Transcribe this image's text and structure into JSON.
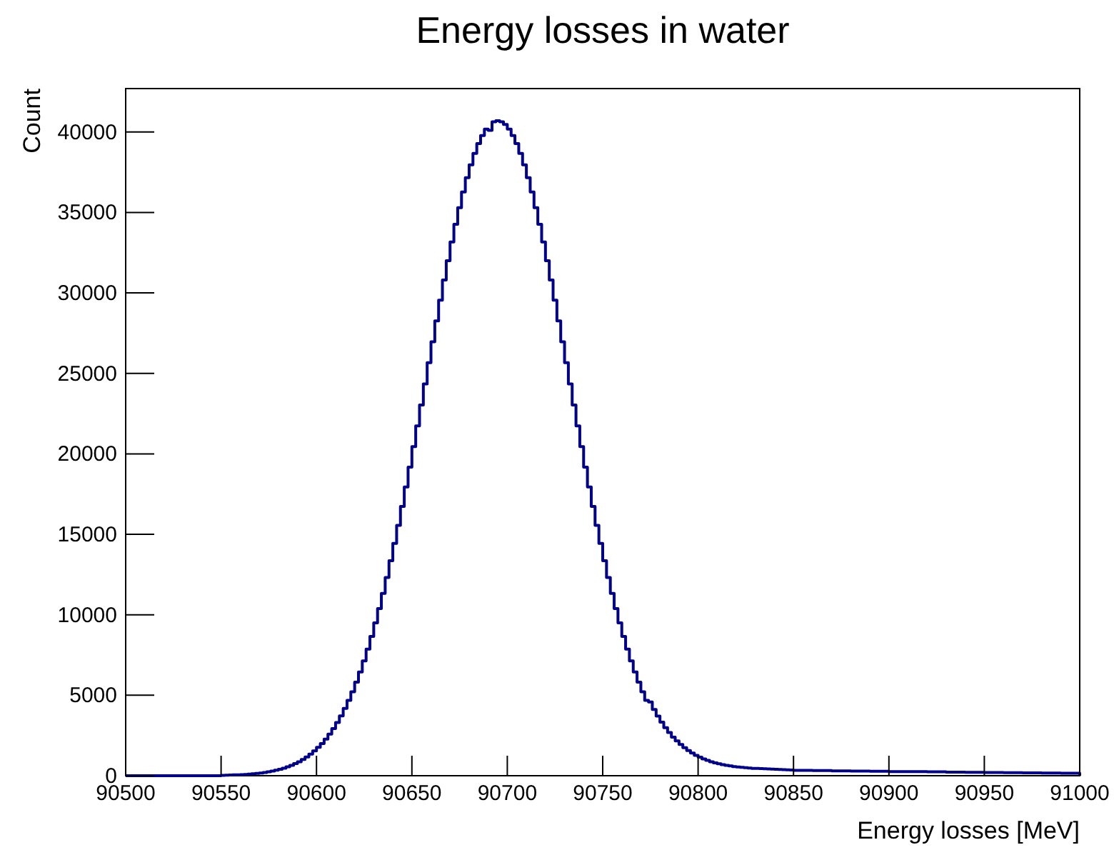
{
  "chart_data": {
    "type": "histogram",
    "title": "Energy losses in water",
    "xlabel": "Energy losses [MeV]",
    "ylabel": "Count",
    "color": "#00008b",
    "bins": [
      90500,
      90510,
      90520,
      90530,
      90540,
      90550,
      90552,
      90554,
      90556,
      90558,
      90560,
      90562,
      90564,
      90566,
      90568,
      90570,
      90572,
      90574,
      90576,
      90578,
      90580,
      90582,
      90584,
      90586,
      90588,
      90590,
      90592,
      90594,
      90596,
      90598,
      90600,
      90602,
      90604,
      90606,
      90608,
      90610,
      90612,
      90614,
      90616,
      90618,
      90620,
      90622,
      90624,
      90626,
      90628,
      90630,
      90632,
      90634,
      90636,
      90638,
      90640,
      90642,
      90644,
      90646,
      90648,
      90650,
      90652,
      90654,
      90656,
      90658,
      90660,
      90662,
      90664,
      90666,
      90668,
      90670,
      90672,
      90674,
      90676,
      90678,
      90680,
      90682,
      90684,
      90686,
      90688,
      90690,
      90692,
      90694,
      90696,
      90698,
      90700,
      90702,
      90704,
      90706,
      90708,
      90710,
      90712,
      90714,
      90716,
      90718,
      90720,
      90722,
      90724,
      90726,
      90728,
      90730,
      90732,
      90734,
      90736,
      90738,
      90740,
      90742,
      90744,
      90746,
      90748,
      90750,
      90752,
      90754,
      90756,
      90758,
      90760,
      90762,
      90764,
      90766,
      90768,
      90770,
      90772,
      90774,
      90776,
      90778,
      90780,
      90782,
      90784,
      90786,
      90788,
      90790,
      90792,
      90794,
      90796,
      90798,
      90800,
      90802,
      90804,
      90806,
      90808,
      90810,
      90812,
      90814,
      90816,
      90818,
      90820,
      90822,
      90824,
      90826,
      90828,
      90830,
      90832,
      90834,
      90836,
      90838,
      90840,
      90842,
      90844,
      90846,
      90848,
      90850,
      90860,
      90870,
      90880,
      90890,
      90900,
      90910,
      90920,
      90930,
      90940,
      90950,
      90960,
      90970,
      90980,
      90990,
      91000
    ],
    "values": [
      0,
      0,
      0,
      0,
      0,
      25,
      30,
      40,
      50,
      60,
      70,
      80,
      100,
      120,
      145,
      170,
      205,
      240,
      290,
      340,
      400,
      470,
      550,
      640,
      750,
      870,
      1010,
      1160,
      1340,
      1540,
      1760,
      2000,
      2280,
      2590,
      2930,
      3310,
      3720,
      4180,
      4680,
      5220,
      5810,
      6450,
      7140,
      7870,
      8660,
      9500,
      10390,
      11330,
      12320,
      13360,
      14440,
      15560,
      16730,
      17940,
      19180,
      20450,
      21740,
      23040,
      24350,
      25670,
      26970,
      28260,
      29550,
      30800,
      32000,
      33170,
      34270,
      35300,
      36270,
      37160,
      37960,
      38670,
      39280,
      39780,
      40180,
      40100,
      40640,
      40700,
      40640,
      40470,
      40180,
      39780,
      39280,
      38670,
      37960,
      37160,
      36270,
      35300,
      34270,
      33170,
      32000,
      30800,
      29550,
      28260,
      26970,
      25670,
      24350,
      23040,
      21740,
      20450,
      19180,
      17940,
      16730,
      15560,
      14440,
      13360,
      12320,
      11330,
      10390,
      9500,
      8660,
      7870,
      7140,
      6450,
      5810,
      5220,
      4680,
      4580,
      4120,
      3710,
      3330,
      2990,
      2680,
      2400,
      2160,
      1940,
      1740,
      1560,
      1410,
      1270,
      1150,
      1040,
      950,
      870,
      800,
      740,
      690,
      640,
      610,
      570,
      540,
      520,
      500,
      480,
      460,
      450,
      440,
      430,
      420,
      410,
      400,
      390,
      380,
      370,
      360,
      330,
      320,
      300,
      290,
      280,
      260,
      250,
      240,
      220,
      210,
      200,
      190,
      180,
      170,
      160
    ],
    "xlim": [
      90500,
      91000
    ],
    "xticks": [
      90500,
      90550,
      90600,
      90650,
      90700,
      90750,
      90800,
      90850,
      90900,
      90950,
      91000
    ],
    "ylim": [
      0,
      42700
    ],
    "yticks": [
      0,
      5000,
      10000,
      15000,
      20000,
      25000,
      30000,
      35000,
      40000
    ]
  }
}
